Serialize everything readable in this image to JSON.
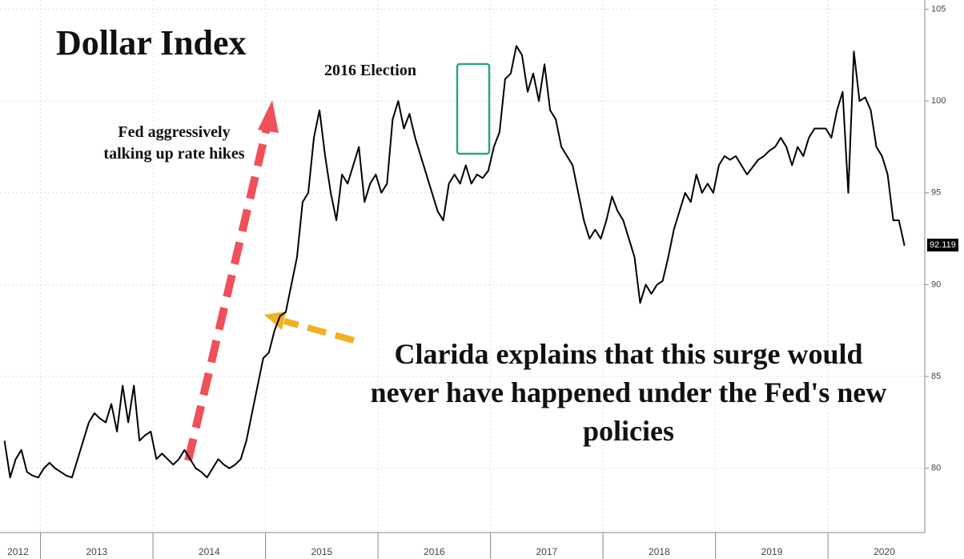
{
  "chart_data": {
    "type": "line",
    "title": "Dollar Index",
    "x": [
      2012.68,
      2012.73,
      2012.78,
      2012.83,
      2012.88,
      2012.93,
      2012.98,
      2013.03,
      2013.08,
      2013.13,
      2013.18,
      2013.23,
      2013.28,
      2013.33,
      2013.38,
      2013.43,
      2013.48,
      2013.53,
      2013.58,
      2013.63,
      2013.68,
      2013.73,
      2013.78,
      2013.83,
      2013.88,
      2013.93,
      2013.98,
      2014.03,
      2014.08,
      2014.13,
      2014.18,
      2014.23,
      2014.28,
      2014.33,
      2014.38,
      2014.43,
      2014.48,
      2014.53,
      2014.58,
      2014.63,
      2014.68,
      2014.73,
      2014.78,
      2014.83,
      2014.88,
      2014.93,
      2014.98,
      2015.03,
      2015.08,
      2015.13,
      2015.18,
      2015.23,
      2015.28,
      2015.33,
      2015.38,
      2015.43,
      2015.48,
      2015.53,
      2015.58,
      2015.63,
      2015.68,
      2015.73,
      2015.78,
      2015.83,
      2015.88,
      2015.93,
      2015.98,
      2016.03,
      2016.08,
      2016.13,
      2016.18,
      2016.23,
      2016.28,
      2016.33,
      2016.38,
      2016.43,
      2016.48,
      2016.53,
      2016.58,
      2016.63,
      2016.68,
      2016.73,
      2016.78,
      2016.83,
      2016.88,
      2016.93,
      2016.98,
      2017.03,
      2017.08,
      2017.13,
      2017.18,
      2017.23,
      2017.28,
      2017.33,
      2017.38,
      2017.43,
      2017.48,
      2017.53,
      2017.58,
      2017.63,
      2017.68,
      2017.73,
      2017.78,
      2017.83,
      2017.88,
      2017.93,
      2017.98,
      2018.03,
      2018.08,
      2018.13,
      2018.18,
      2018.23,
      2018.28,
      2018.33,
      2018.38,
      2018.43,
      2018.48,
      2018.53,
      2018.58,
      2018.63,
      2018.68,
      2018.73,
      2018.78,
      2018.83,
      2018.88,
      2018.93,
      2018.98,
      2019.03,
      2019.08,
      2019.13,
      2019.18,
      2019.23,
      2019.28,
      2019.33,
      2019.38,
      2019.43,
      2019.48,
      2019.53,
      2019.58,
      2019.63,
      2019.68,
      2019.73,
      2019.78,
      2019.83,
      2019.88,
      2019.93,
      2019.98,
      2020.03,
      2020.08,
      2020.13,
      2020.18,
      2020.23,
      2020.28,
      2020.33,
      2020.38,
      2020.43,
      2020.48,
      2020.53,
      2020.58,
      2020.63,
      2020.68
    ],
    "values": [
      81.5,
      79.5,
      80.5,
      81,
      79.8,
      79.6,
      79.5,
      80,
      80.3,
      80,
      79.8,
      79.6,
      79.5,
      80.5,
      81.5,
      82.5,
      83,
      82.7,
      82.5,
      83.5,
      82,
      84.5,
      82.5,
      84.5,
      81.5,
      81.8,
      82,
      80.5,
      80.8,
      80.5,
      80.2,
      80.5,
      81,
      80.5,
      80,
      79.8,
      79.5,
      80,
      80.5,
      80.2,
      80,
      80.2,
      80.5,
      81.5,
      83,
      84.5,
      86,
      86.3,
      87.5,
      88.3,
      88.5,
      90,
      91.5,
      94.5,
      95,
      98,
      99.5,
      97,
      95,
      93.5,
      96,
      95.5,
      96.5,
      97.5,
      94.5,
      95.5,
      96,
      95,
      95.5,
      99,
      100,
      98.5,
      99.3,
      98,
      97,
      96,
      95,
      94,
      93.5,
      95.5,
      96,
      95.5,
      96.5,
      95.5,
      96,
      95.8,
      96.2,
      97.5,
      98.3,
      101.2,
      101.5,
      103,
      102.5,
      100.5,
      101.5,
      100,
      102,
      99.5,
      99,
      97.5,
      97,
      96.5,
      95,
      93.5,
      92.5,
      93,
      92.5,
      93.5,
      94.8,
      94,
      93.5,
      92.5,
      91.5,
      89,
      90,
      89.5,
      90,
      90.2,
      91.5,
      93,
      94,
      95,
      94.5,
      96,
      95,
      95.5,
      95,
      96.5,
      97,
      96.8,
      97,
      96.5,
      96,
      96.4,
      96.8,
      97,
      97.3,
      97.5,
      98,
      97.5,
      96.5,
      97.5,
      97,
      98,
      98.5,
      98.5,
      98.5,
      98,
      99.5,
      100.5,
      95,
      102.7,
      100,
      100.2,
      99.5,
      97.5,
      97,
      96,
      93.5,
      93.5,
      92.119
    ],
    "color": "#000000",
    "xlim": [
      2012.64,
      2020.86
    ],
    "ylim": [
      76.5,
      105.5
    ],
    "yticks": [
      80,
      85,
      90,
      95,
      100,
      105
    ],
    "xticks": [
      {
        "value": 2012.8,
        "label": "2012"
      },
      {
        "value": 2013.5,
        "label": "2013"
      },
      {
        "value": 2014.5,
        "label": "2014"
      },
      {
        "value": 2015.5,
        "label": "2015"
      },
      {
        "value": 2016.5,
        "label": "2016"
      },
      {
        "value": 2017.5,
        "label": "2017"
      },
      {
        "value": 2018.5,
        "label": "2018"
      },
      {
        "value": 2019.5,
        "label": "2019"
      },
      {
        "value": 2020.5,
        "label": "2020"
      }
    ],
    "xgrid": [
      2013,
      2014,
      2015,
      2016,
      2017,
      2018,
      2019,
      2020
    ],
    "grid": true,
    "annotations": [
      "Fed aggressively talking up rate hikes",
      "2016 Election",
      "Clarida explains that this surge would never have happened under the Fed's new policies"
    ]
  }
}
